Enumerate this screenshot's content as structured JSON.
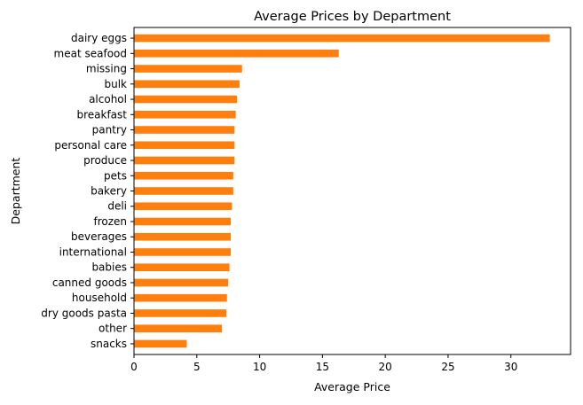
{
  "chart_data": {
    "type": "bar",
    "orientation": "horizontal",
    "title": "Average Prices by Department",
    "xlabel": "Average Price",
    "ylabel": "Department",
    "categories": [
      "dairy eggs",
      "meat seafood",
      "missing",
      "bulk",
      "alcohol",
      "breakfast",
      "pantry",
      "personal care",
      "produce",
      "pets",
      "bakery",
      "deli",
      "frozen",
      "beverages",
      "international",
      "babies",
      "canned goods",
      "household",
      "dry goods pasta",
      "other",
      "snacks"
    ],
    "values": [
      33.1,
      16.3,
      8.6,
      8.4,
      8.2,
      8.1,
      8.0,
      8.0,
      8.0,
      7.9,
      7.9,
      7.8,
      7.7,
      7.7,
      7.7,
      7.6,
      7.5,
      7.4,
      7.35,
      7.0,
      4.2
    ],
    "xlim": [
      0,
      34.75
    ],
    "xticks": [
      0,
      5,
      10,
      15,
      20,
      25,
      30
    ],
    "bar_color": "#ff7f0e",
    "grid": false,
    "legend": "none"
  }
}
